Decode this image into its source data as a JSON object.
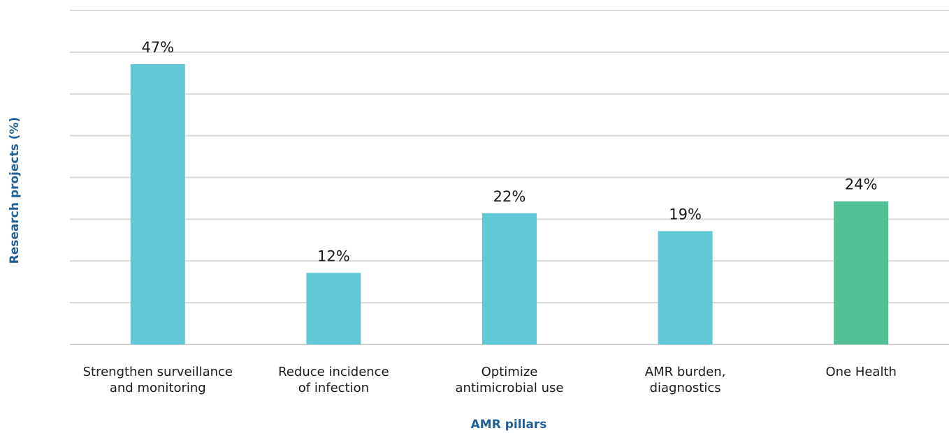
{
  "chart_data": {
    "type": "bar",
    "title": "",
    "xlabel": "AMR pillars",
    "ylabel": "Research projects (%)",
    "ylim": [
      0,
      56
    ],
    "grid": true,
    "categories": [
      [
        "Strengthen surveillance",
        "and monitoring"
      ],
      [
        "Reduce incidence",
        "of infection"
      ],
      [
        "Optimize",
        "antimicrobial use"
      ],
      [
        "AMR burden,",
        "diagnostics"
      ],
      [
        "One Health"
      ]
    ],
    "values": [
      47,
      12,
      22,
      19,
      24
    ],
    "labels": [
      "47%",
      "12%",
      "22%",
      "19%",
      "24%"
    ],
    "colors": [
      "#61c8d6",
      "#61c8d6",
      "#61c8d6",
      "#61c8d6",
      "#52bf95"
    ]
  }
}
